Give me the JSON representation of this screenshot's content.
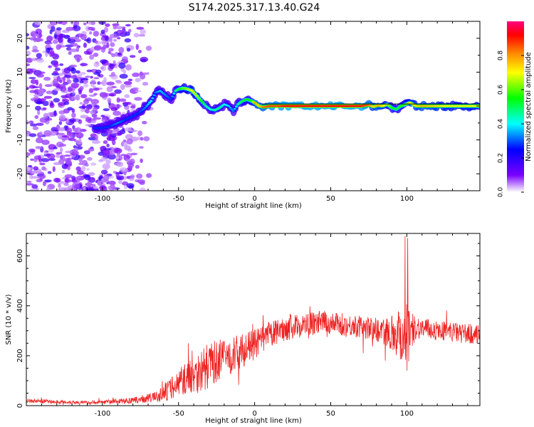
{
  "page_title": "S174.2025.317.13.40.G24",
  "chart_data": [
    {
      "type": "heatmap",
      "name": "spectrogram",
      "title": "S174.2025.317.13.40.G24",
      "xlabel": "Height of straight line (km)",
      "ylabel": "Frequency (Hz)",
      "xlim": [
        -150,
        148
      ],
      "ylim": [
        -25,
        25
      ],
      "xticks": [
        -100,
        -50,
        0,
        50,
        100
      ],
      "yticks": [
        -20,
        -10,
        0,
        10,
        20
      ],
      "xtick_labels": [
        "-100",
        "-50",
        "0",
        "50",
        "100"
      ],
      "ytick_labels": [
        "-20",
        "-10",
        "0",
        "10",
        "20"
      ],
      "colorbar": {
        "label": "Normalized spectral amplitude",
        "range": [
          0,
          1
        ],
        "ticks": [
          0.0,
          0.2,
          0.4,
          0.6,
          0.8
        ],
        "tick_labels": [
          "0.0",
          "0.2",
          "0.4",
          "0.6",
          "0.8"
        ],
        "colors": [
          "#ffffff",
          "#7a00ff",
          "#0000ff",
          "#00ffff",
          "#00ff00",
          "#ffff00",
          "#ff8000",
          "#ff0000",
          "#ff00a0"
        ]
      },
      "ridge": {
        "description_values": "dominant frequency vs height",
        "x": [
          -105,
          -100,
          -95,
          -90,
          -85,
          -80,
          -76,
          -72,
          -68,
          -65,
          -62,
          -58,
          -55,
          -52,
          -50,
          -47,
          -44,
          -41,
          -38,
          -35,
          -32,
          -29,
          -26,
          -23,
          -20,
          -17,
          -14,
          -11,
          -8,
          -5,
          -2,
          0,
          3,
          6,
          10,
          15,
          20,
          25,
          30,
          40,
          50,
          60,
          70,
          75,
          78,
          81,
          84,
          87,
          90,
          93,
          96,
          99,
          102,
          106,
          110,
          120,
          130,
          140,
          148
        ],
        "y": [
          -6.5,
          -6.5,
          -6,
          -5,
          -4,
          -3,
          -2,
          -0.5,
          1.5,
          4,
          4.5,
          3,
          2,
          4.5,
          5,
          5.3,
          5,
          4.5,
          3,
          1.5,
          0,
          -1,
          -1.2,
          -0.5,
          0.5,
          0,
          -1.5,
          0.5,
          1.5,
          2,
          1.5,
          1,
          0,
          -0.3,
          0,
          0,
          0,
          0,
          0,
          0,
          0,
          0,
          0,
          0.3,
          -0.2,
          0.2,
          0,
          0.5,
          -0.5,
          -1,
          0,
          0.5,
          1,
          0,
          0,
          0,
          0,
          0,
          0
        ],
        "amplitude": [
          0.3,
          0.3,
          0.3,
          0.35,
          0.3,
          0.3,
          0.3,
          0.35,
          0.45,
          0.35,
          0.4,
          0.35,
          0.3,
          0.5,
          0.55,
          0.65,
          0.7,
          0.75,
          0.7,
          0.6,
          0.5,
          0.45,
          0.5,
          0.5,
          0.45,
          0.4,
          0.35,
          0.5,
          0.55,
          0.6,
          0.6,
          0.85,
          0.8,
          0.9,
          0.95,
          0.95,
          1.0,
          1.0,
          1.0,
          1.0,
          1.0,
          1.0,
          1.0,
          0.9,
          0.8,
          0.85,
          0.8,
          0.7,
          0.6,
          0.55,
          0.6,
          0.65,
          0.75,
          0.8,
          0.85,
          0.8,
          0.75,
          0.75,
          0.75
        ]
      },
      "noise_region": {
        "x_from": -150,
        "x_to": -75
      }
    },
    {
      "type": "line",
      "name": "snr",
      "xlabel": "Height of straight line (km)",
      "ylabel": "SNR (10 * v/v)",
      "xlim": [
        -150,
        148
      ],
      "ylim": [
        0,
        690
      ],
      "xticks": [
        -100,
        -50,
        0,
        50,
        100
      ],
      "yticks": [
        0,
        200,
        400,
        600
      ],
      "xtick_labels": [
        "-100",
        "-50",
        "0",
        "50",
        "100"
      ],
      "ytick_labels": [
        "0",
        "200",
        "400",
        "600"
      ],
      "color": "#ee2222",
      "series": [
        {
          "name": "SNR",
          "x": [
            -150,
            -140,
            -130,
            -120,
            -110,
            -100,
            -90,
            -80,
            -75,
            -70,
            -65,
            -60,
            -55,
            -50,
            -45,
            -40,
            -35,
            -30,
            -25,
            -20,
            -15,
            -10,
            -5,
            0,
            5,
            10,
            15,
            20,
            25,
            30,
            35,
            40,
            45,
            50,
            55,
            60,
            65,
            70,
            75,
            80,
            85,
            90,
            95,
            100,
            103,
            106,
            110,
            115,
            120,
            125,
            130,
            135,
            140,
            145,
            148
          ],
          "y": [
            20,
            18,
            15,
            14,
            12,
            15,
            18,
            20,
            25,
            30,
            35,
            45,
            70,
            90,
            110,
            130,
            140,
            160,
            180,
            190,
            200,
            215,
            230,
            245,
            265,
            285,
            295,
            310,
            315,
            320,
            325,
            330,
            335,
            330,
            325,
            320,
            320,
            315,
            310,
            305,
            300,
            295,
            290,
            280,
            300,
            315,
            310,
            305,
            300,
            300,
            295,
            290,
            290,
            285,
            280
          ],
          "spread": [
            8,
            8,
            7,
            7,
            7,
            8,
            10,
            12,
            15,
            18,
            22,
            35,
            45,
            55,
            65,
            80,
            90,
            90,
            85,
            80,
            75,
            70,
            65,
            60,
            55,
            55,
            50,
            50,
            50,
            48,
            48,
            48,
            46,
            45,
            45,
            45,
            45,
            45,
            45,
            50,
            55,
            70,
            110,
            160,
            70,
            50,
            45,
            40,
            40,
            40,
            40,
            40,
            40,
            40,
            40
          ]
        }
      ]
    }
  ]
}
